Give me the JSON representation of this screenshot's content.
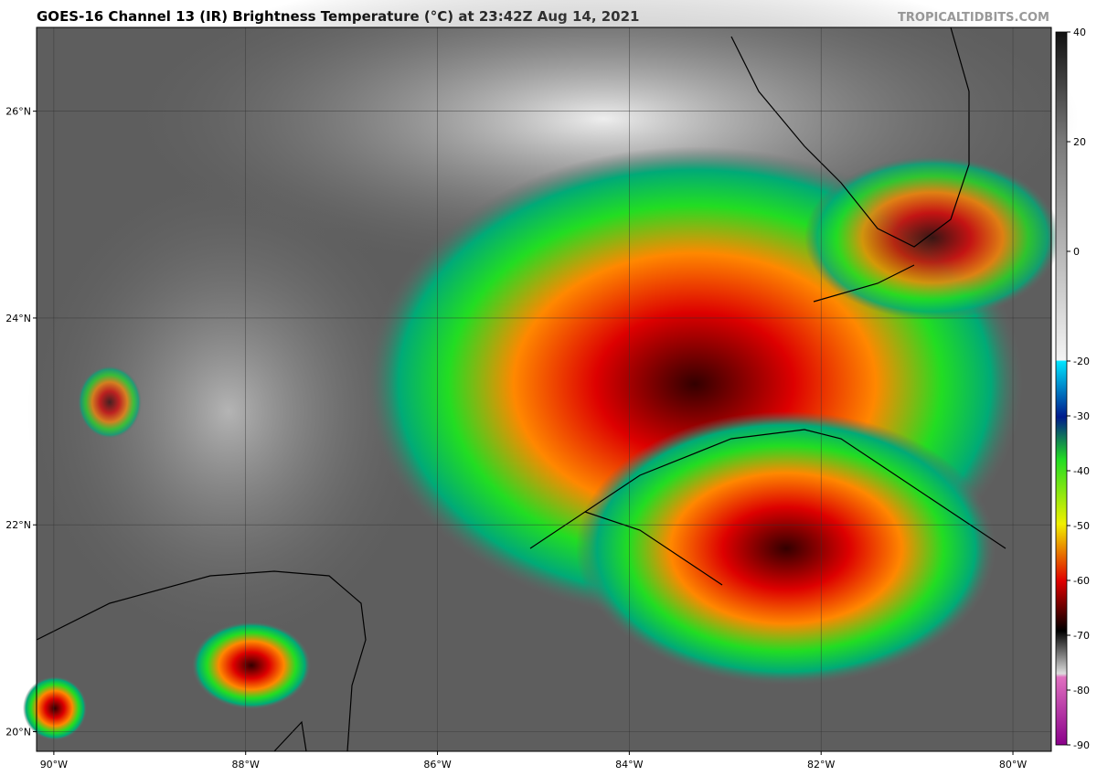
{
  "header": {
    "title": "GOES-16 Channel 13 (IR) Brightness Temperature (°C) at 23:42Z Aug 14, 2021",
    "site": "TROPICALTIDBITS.COM"
  },
  "map": {
    "xlim": [
      -90.18,
      -79.6
    ],
    "ylim": [
      19.81,
      26.81
    ],
    "xticks": [
      {
        "value": -90,
        "label": "90°W"
      },
      {
        "value": -88,
        "label": "88°W"
      },
      {
        "value": -86,
        "label": "86°W"
      },
      {
        "value": -84,
        "label": "84°W"
      },
      {
        "value": -82,
        "label": "82°W"
      },
      {
        "value": -80,
        "label": "80°W"
      }
    ],
    "yticks": [
      {
        "value": 26,
        "label": "26°N"
      },
      {
        "value": 24,
        "label": "24°N"
      },
      {
        "value": 22,
        "label": "22°N"
      },
      {
        "value": 20,
        "label": "20°N"
      }
    ]
  },
  "colorbar": {
    "lim": [
      -90,
      40
    ],
    "ticks": [
      40,
      20,
      0,
      -20,
      -30,
      -40,
      -50,
      -60,
      -70,
      -80,
      -90
    ]
  }
}
